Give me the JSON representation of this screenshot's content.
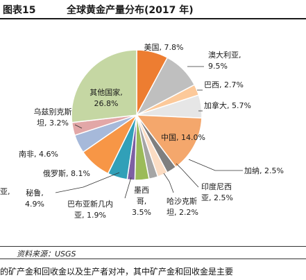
{
  "figure": {
    "number": "图表15",
    "title": "全球黄金产量分布(2017 年)"
  },
  "source": "资料来源：USGS",
  "body_text": "的矿产金和回收金以及生产者对冲，其中矿产金和回收金是主要",
  "chart_data": {
    "type": "pie",
    "title": "全球黄金产量分布(2017 年)",
    "unit": "%",
    "slices": [
      {
        "label": "美国",
        "value": 7.8,
        "label_lines": [
          "美国, 7.8%"
        ],
        "color": "#ed7d31"
      },
      {
        "label": "澳大利亚",
        "value": 9.5,
        "label_lines": [
          "澳大利亚,",
          "9.5%"
        ],
        "color": "#bfbfbf"
      },
      {
        "label": "巴西",
        "value": 2.7,
        "label_lines": [
          "巴西, 2.7%"
        ],
        "color": "#fcc99a"
      },
      {
        "label": "加拿大",
        "value": 5.7,
        "label_lines": [
          "加拿大, 5.7%"
        ],
        "color": "#e6e6e6"
      },
      {
        "label": "中国",
        "value": 14.0,
        "label_lines": [
          "中国, 14.0%"
        ],
        "color": "#f4a76c"
      },
      {
        "label": "加纳",
        "value": 2.5,
        "label_lines": [
          "加纳, 2.5%"
        ],
        "color": "#7f7f7f"
      },
      {
        "label": "印度尼西亚",
        "value": 2.5,
        "label_lines": [
          "印度尼西",
          "亚, 2.5%"
        ],
        "color": "#fbdcc3"
      },
      {
        "label": "哈沙克斯坦",
        "value": 2.2,
        "label_lines": [
          "哈沙克斯",
          "坦, 2.2%"
        ],
        "color": "#a5a5a5"
      },
      {
        "label": "墨西哥",
        "value": 3.5,
        "label_lines": [
          "墨西",
          "哥,",
          "3.5%"
        ],
        "color": "#9bbb59"
      },
      {
        "label": "巴布亚新几内亚",
        "value": 1.9,
        "label_lines": [
          "巴布亚新几内",
          "亚, 1.9%"
        ],
        "color": "#7d5fa3"
      },
      {
        "label": "秘鲁",
        "value": 4.9,
        "label_lines": [
          "秘鲁,",
          "4.9%"
        ],
        "color": "#31a0b8"
      },
      {
        "label": "俄罗斯",
        "value": 8.1,
        "label_lines": [
          "俄罗斯, 8.1%"
        ],
        "color": "#f79646"
      },
      {
        "label": "南非",
        "value": 4.6,
        "label_lines": [
          "南非, 4.6%"
        ],
        "color": "#a6b9da"
      },
      {
        "label": "乌兹别克斯坦",
        "value": 3.2,
        "label_lines": [
          "乌兹别克斯",
          "坦, 3.2%"
        ],
        "color": "#e2a7a7"
      },
      {
        "label": "其他国家",
        "value": 26.8,
        "label_lines": [
          "其他国家,",
          "26.8%"
        ],
        "color": "#c5d7a3"
      }
    ],
    "extra_label_fragment": "亚,",
    "legend": "none"
  }
}
